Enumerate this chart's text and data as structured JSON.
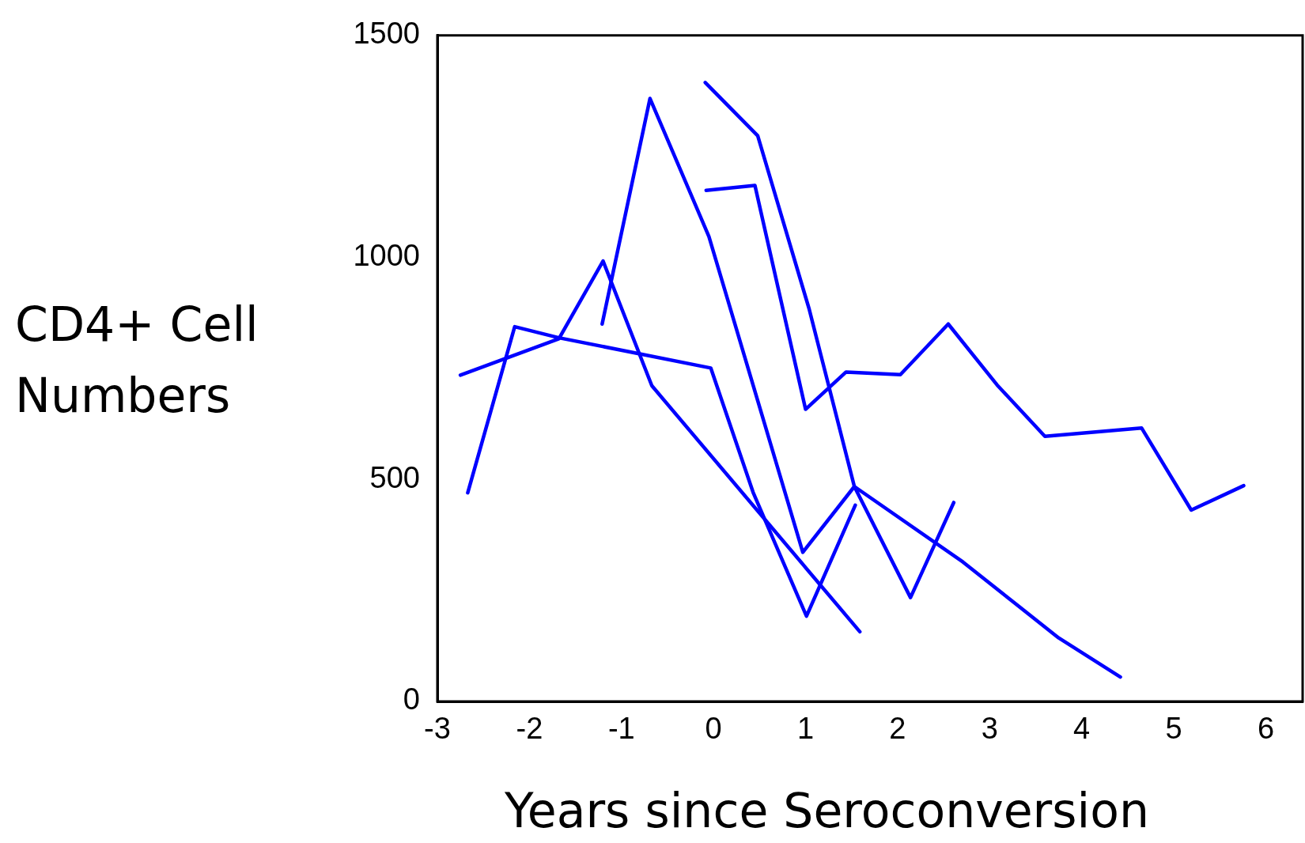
{
  "chart_data": {
    "type": "line",
    "xlabel": "Years since Seroconversion",
    "ylabel": "CD4+ Cell Numbers",
    "xlim": [
      -3,
      6.4
    ],
    "xticks": [
      -3,
      -2,
      -1,
      0,
      1,
      2,
      3,
      4,
      5,
      6
    ],
    "ylim": [
      0,
      1500
    ],
    "yticks": [
      0,
      500,
      1000,
      1500
    ],
    "grid": false,
    "legend": false,
    "marker": "none",
    "line_style": "solid",
    "series": [
      {
        "color": "#0000ff",
        "x": [
          -2.75,
          -1.68,
          -1.2,
          -0.67,
          1.59
        ],
        "values": [
          735,
          817,
          992,
          711,
          157
        ]
      },
      {
        "color": "#0000ff",
        "x": [
          -2.67,
          -2.16,
          -1.68,
          -0.03,
          0.43,
          1.01,
          1.54
        ],
        "values": [
          470,
          844,
          819,
          751,
          471,
          192,
          442
        ]
      },
      {
        "color": "#0000ff",
        "x": [
          -1.21,
          -0.69,
          -0.05,
          0.97,
          1.53,
          2.14,
          2.61
        ],
        "values": [
          850,
          1358,
          1047,
          336,
          484,
          234,
          448
        ]
      },
      {
        "color": "#0000ff",
        "x": [
          -0.09,
          0.48,
          1.04,
          1.53,
          2.71,
          3.75,
          4.42
        ],
        "values": [
          1394,
          1274,
          883,
          484,
          314,
          143,
          55
        ]
      },
      {
        "color": "#0000ff",
        "x": [
          -0.08,
          0.45,
          1.0,
          1.44,
          2.03,
          2.55,
          3.08,
          3.6,
          4.65,
          5.19,
          5.76
        ],
        "values": [
          1151,
          1162,
          658,
          742,
          736,
          850,
          713,
          597,
          616,
          431,
          486
        ]
      }
    ]
  }
}
